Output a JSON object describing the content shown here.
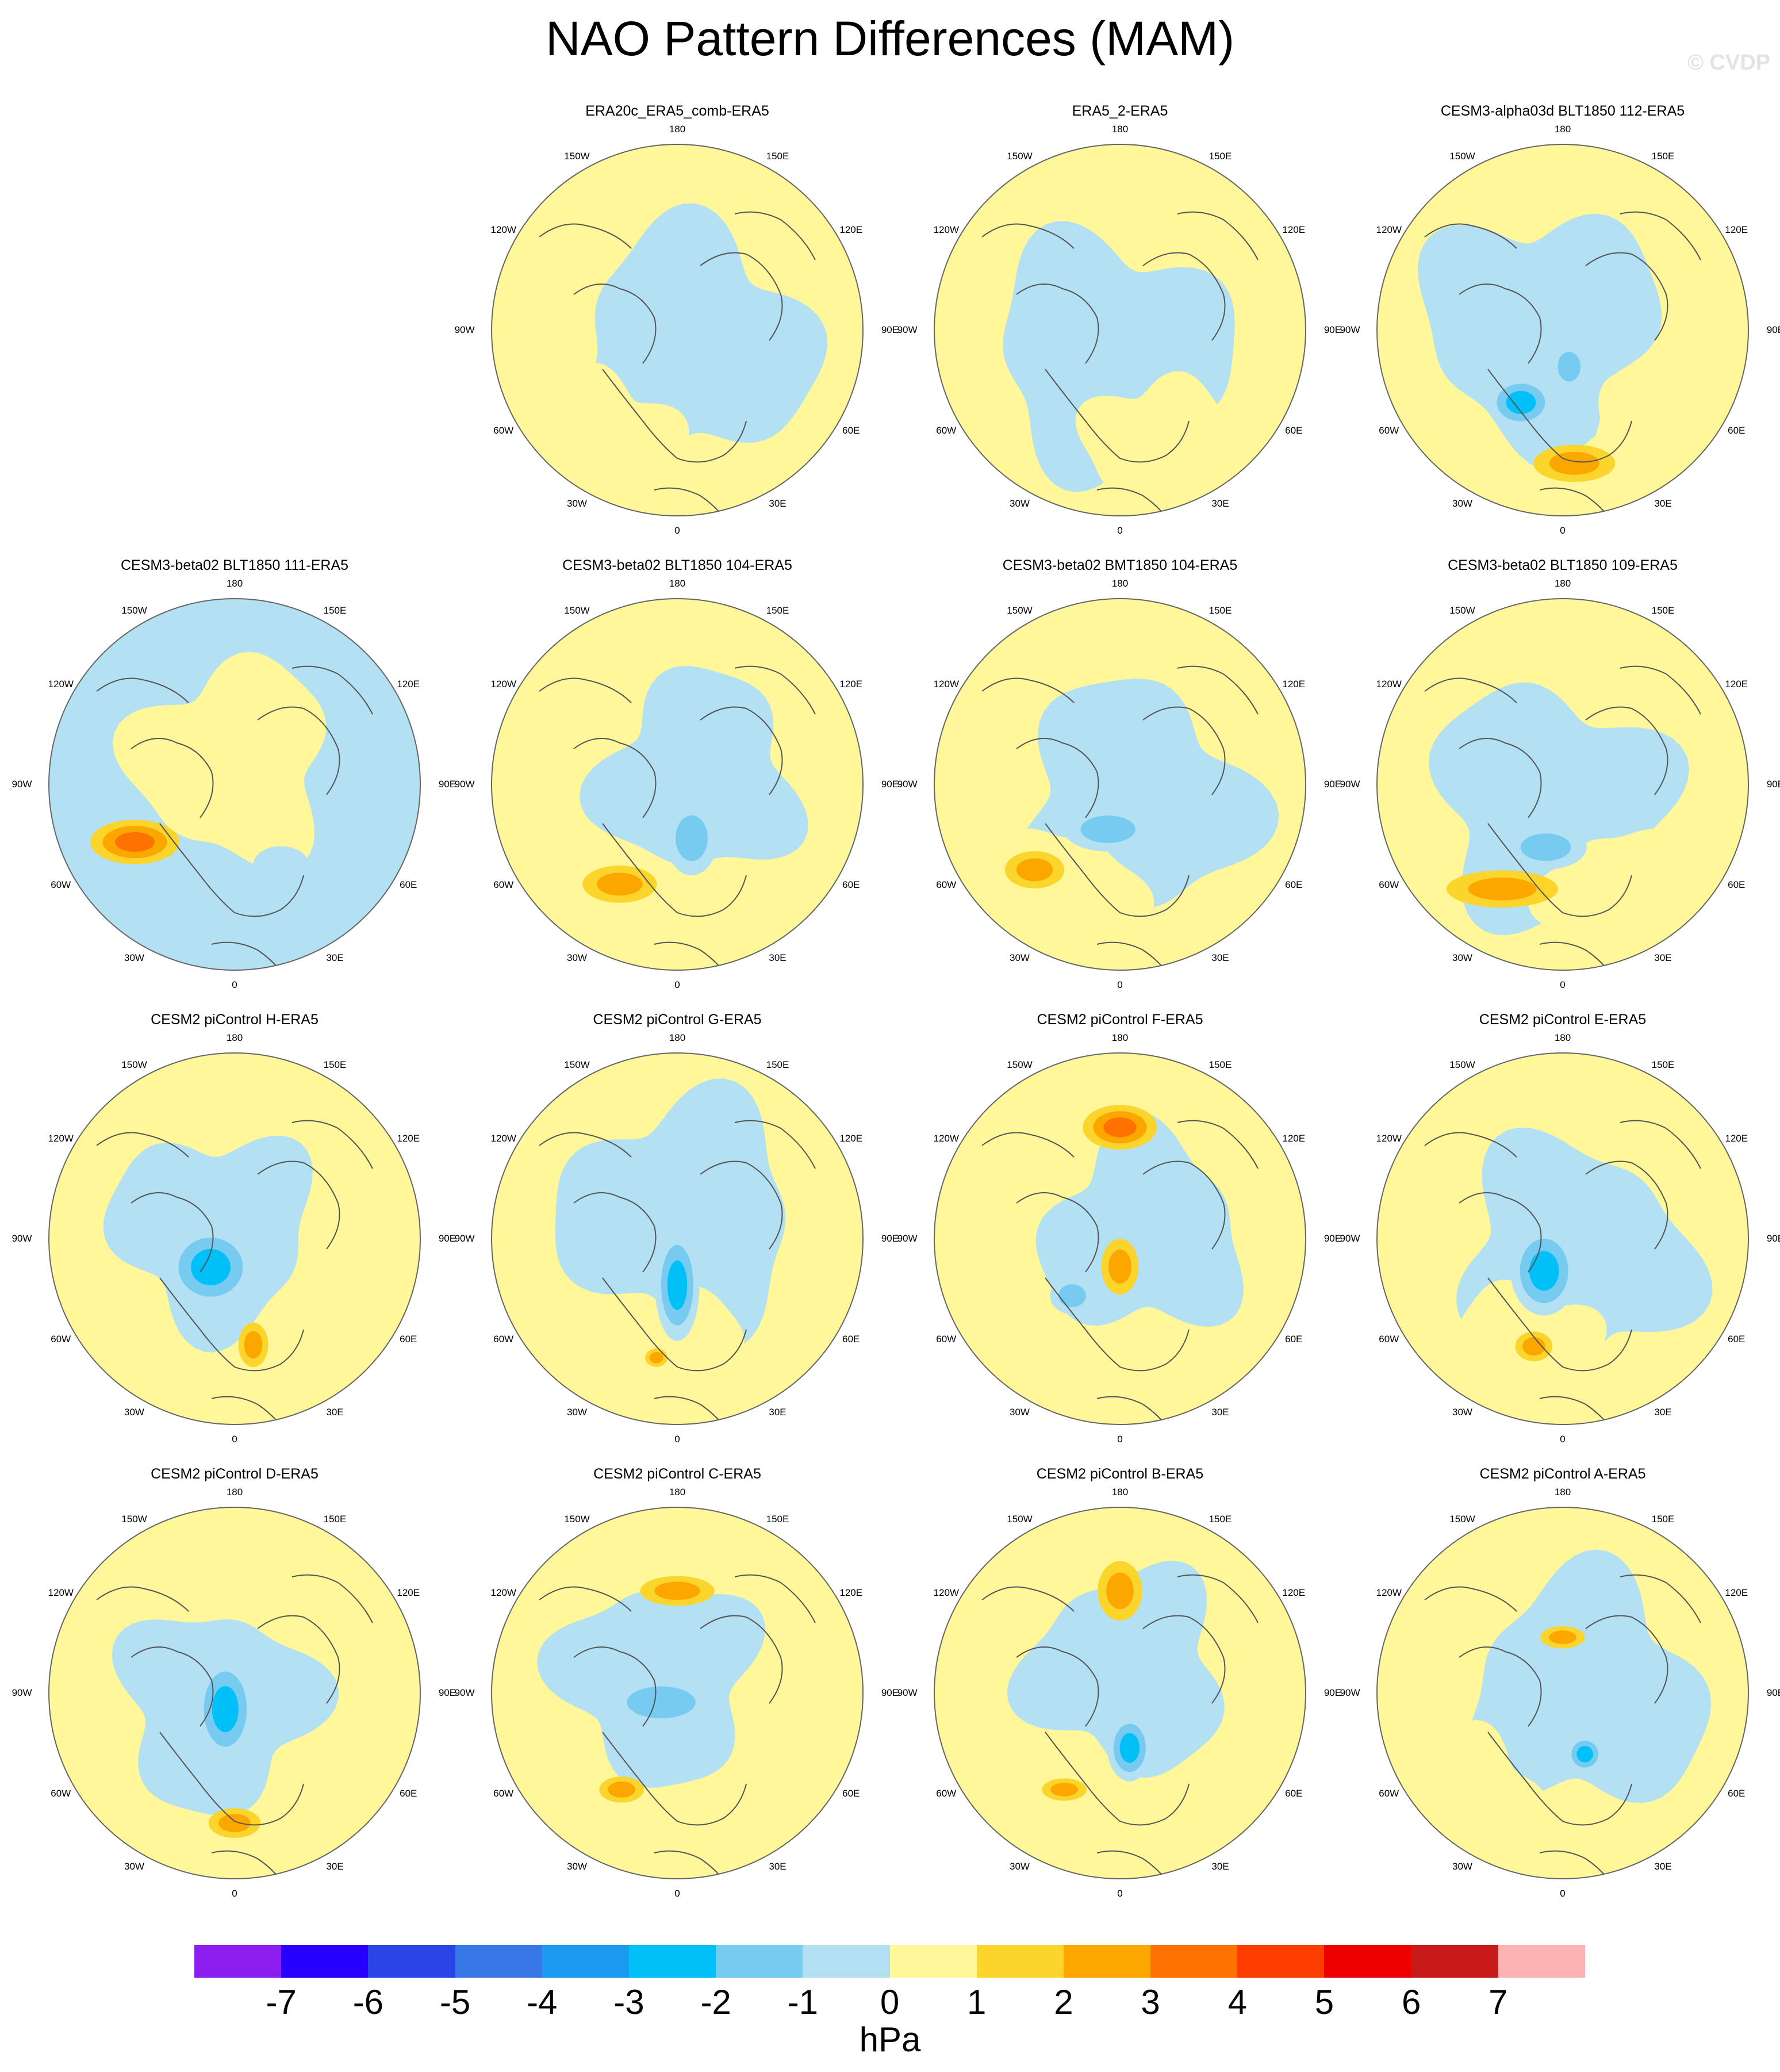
{
  "title": "NAO Pattern Differences (MAM)",
  "watermark": "© CVDP",
  "longitude_labels": [
    "180",
    "150E",
    "120E",
    "90E",
    "60E",
    "30E",
    "0",
    "30W",
    "60W",
    "90W",
    "120W",
    "150W"
  ],
  "colors": {
    "land_outline": "#555555",
    "panel_border": "#666666",
    "neutral_positive": "#fff799",
    "neutral_negative": "#b3e0f3"
  },
  "chart_data": {
    "type": "heatmap",
    "projection": "north-polar-stereographic",
    "variable_unit": "hPa",
    "colorbar": {
      "ticks": [
        "-7",
        "-6",
        "-5",
        "-4",
        "-3",
        "-2",
        "-1",
        "0",
        "1",
        "2",
        "3",
        "4",
        "5",
        "6",
        "7"
      ],
      "colors": [
        "#8c1ef0",
        "#2700ff",
        "#2b44e6",
        "#3778e6",
        "#1c9af0",
        "#01c0f8",
        "#77cbf0",
        "#b3e0f3",
        "#fff799",
        "#fcd52c",
        "#fca700",
        "#fd7200",
        "#fd3d00",
        "#ef0000",
        "#c91a1a",
        "#fdb3b3"
      ],
      "label": "hPa"
    },
    "panels": [
      {
        "title": "ERA20c_ERA5_comb-ERA5",
        "base": "mixed",
        "features": []
      },
      {
        "title": "ERA5_2-ERA5",
        "base": "mixed",
        "features": []
      },
      {
        "title": "CESM3-alpha03d BLT1850 112-ERA5",
        "base": "mixed",
        "features": [
          {
            "lon": 330,
            "r": 0.45,
            "level": -3,
            "rx": 0.18,
            "ry": 0.14
          },
          {
            "lon": 10,
            "r": 0.2,
            "level": -2,
            "rx": 0.1,
            "ry": 0.13
          },
          {
            "lon": 5,
            "r": 0.72,
            "level": 2,
            "rx": 0.22,
            "ry": 0.1
          }
        ]
      },
      {
        "title": "CESM3-beta02 BLT1850 111-ERA5",
        "base": "negative",
        "features": [
          {
            "lon": 300,
            "r": 0.62,
            "level": 3,
            "rx": 0.24,
            "ry": 0.12
          },
          {
            "lon": 30,
            "r": 0.5,
            "level": -1,
            "rx": 0.15,
            "ry": 0.1
          }
        ]
      },
      {
        "title": "CESM3-beta02 BLT1850 104-ERA5",
        "base": "positive",
        "features": [
          {
            "lon": 15,
            "r": 0.3,
            "level": -2,
            "rx": 0.14,
            "ry": 0.2
          },
          {
            "lon": 330,
            "r": 0.62,
            "level": 2,
            "rx": 0.2,
            "ry": 0.1
          }
        ]
      },
      {
        "title": "CESM3-beta02 BMT1850 104-ERA5",
        "base": "mixed",
        "features": [
          {
            "lon": 345,
            "r": 0.25,
            "level": -2,
            "rx": 0.24,
            "ry": 0.12
          },
          {
            "lon": 315,
            "r": 0.65,
            "level": 2,
            "rx": 0.16,
            "ry": 0.1
          }
        ]
      },
      {
        "title": "CESM3-beta02 BLT1850 109-ERA5",
        "base": "mixed",
        "features": [
          {
            "lon": 345,
            "r": 0.35,
            "level": -2,
            "rx": 0.22,
            "ry": 0.12
          },
          {
            "lon": 330,
            "r": 0.65,
            "level": 2,
            "rx": 0.3,
            "ry": 0.1
          }
        ]
      },
      {
        "title": "CESM2 piControl H-ERA5",
        "base": "positive",
        "features": [
          {
            "lon": 320,
            "r": 0.2,
            "level": -3,
            "rx": 0.24,
            "ry": 0.22
          },
          {
            "lon": 10,
            "r": 0.58,
            "level": 2,
            "rx": 0.08,
            "ry": 0.12
          }
        ]
      },
      {
        "title": "CESM2 piControl G-ERA5",
        "base": "mixed",
        "features": [
          {
            "lon": 0,
            "r": 0.25,
            "level": -3,
            "rx": 0.12,
            "ry": 0.3
          },
          {
            "lon": 350,
            "r": 0.65,
            "level": 2,
            "rx": 0.06,
            "ry": 0.05
          }
        ]
      },
      {
        "title": "CESM2 piControl F-ERA5",
        "base": "positive",
        "features": [
          {
            "lon": 180,
            "r": 0.6,
            "level": 3,
            "rx": 0.2,
            "ry": 0.12
          },
          {
            "lon": 0,
            "r": 0.15,
            "level": 2,
            "rx": 0.1,
            "ry": 0.15
          },
          {
            "lon": 320,
            "r": 0.4,
            "level": -2,
            "rx": 0.12,
            "ry": 0.1
          }
        ]
      },
      {
        "title": "CESM2 piControl E-ERA5",
        "base": "mixed",
        "features": [
          {
            "lon": 330,
            "r": 0.2,
            "level": -3,
            "rx": 0.18,
            "ry": 0.24
          },
          {
            "lon": 345,
            "r": 0.6,
            "level": 2,
            "rx": 0.1,
            "ry": 0.08
          }
        ]
      },
      {
        "title": "CESM2 piControl D-ERA5",
        "base": "positive",
        "features": [
          {
            "lon": 330,
            "r": 0.1,
            "level": -3,
            "rx": 0.16,
            "ry": 0.28
          },
          {
            "lon": 0,
            "r": 0.7,
            "level": 2,
            "rx": 0.14,
            "ry": 0.08
          }
        ]
      },
      {
        "title": "CESM2 piControl C-ERA5",
        "base": "positive",
        "features": [
          {
            "lon": 180,
            "r": 0.55,
            "level": 2,
            "rx": 0.2,
            "ry": 0.08
          },
          {
            "lon": 330,
            "r": 0.6,
            "level": 2,
            "rx": 0.12,
            "ry": 0.07
          },
          {
            "lon": 300,
            "r": 0.1,
            "level": -2,
            "rx": 0.3,
            "ry": 0.14
          }
        ]
      },
      {
        "title": "CESM2 piControl B-ERA5",
        "base": "positive",
        "features": [
          {
            "lon": 180,
            "r": 0.55,
            "level": 2,
            "rx": 0.12,
            "ry": 0.16
          },
          {
            "lon": 10,
            "r": 0.3,
            "level": -3,
            "rx": 0.12,
            "ry": 0.18
          },
          {
            "lon": 330,
            "r": 0.6,
            "level": 2,
            "rx": 0.12,
            "ry": 0.06
          }
        ]
      },
      {
        "title": "CESM2 piControl A-ERA5",
        "base": "mixed",
        "features": [
          {
            "lon": 20,
            "r": 0.35,
            "level": -3,
            "rx": 0.1,
            "ry": 0.1
          },
          {
            "lon": 180,
            "r": 0.3,
            "level": 2,
            "rx": 0.12,
            "ry": 0.06
          }
        ]
      }
    ]
  }
}
